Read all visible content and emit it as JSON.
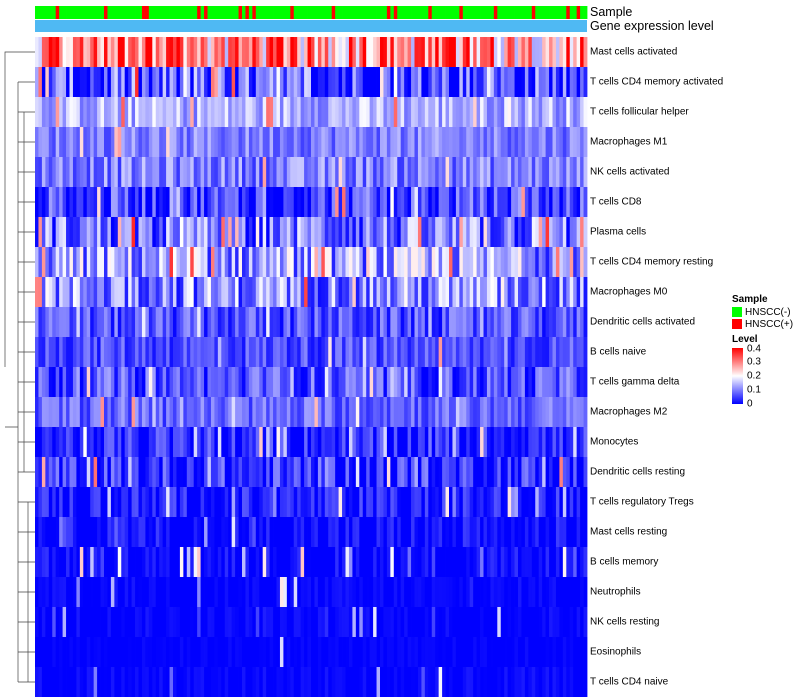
{
  "chart_data": {
    "type": "heatmap",
    "title": "",
    "annotation_tracks": [
      "Sample",
      "Gene expression level"
    ],
    "rows": [
      {
        "label": "Mast cells activated",
        "mean": 0.27,
        "spread": 0.14,
        "ptail": 0.35
      },
      {
        "label": "T cells CD4 memory activated",
        "mean": 0.05,
        "spread": 0.12,
        "ptail": 0.15
      },
      {
        "label": "T cells follicular helper",
        "mean": 0.14,
        "spread": 0.06,
        "ptail": 0.05
      },
      {
        "label": "Macrophages M1",
        "mean": 0.1,
        "spread": 0.05,
        "ptail": 0.04
      },
      {
        "label": "NK cells activated",
        "mean": 0.1,
        "spread": 0.06,
        "ptail": 0.04
      },
      {
        "label": "T cells CD8",
        "mean": 0.05,
        "spread": 0.08,
        "ptail": 0.1
      },
      {
        "label": "Plasma cells",
        "mean": 0.09,
        "spread": 0.1,
        "ptail": 0.12
      },
      {
        "label": "T cells CD4 memory resting",
        "mean": 0.12,
        "spread": 0.1,
        "ptail": 0.1
      },
      {
        "label": "Macrophages M0",
        "mean": 0.11,
        "spread": 0.1,
        "ptail": 0.12
      },
      {
        "label": "Dendritic cells activated",
        "mean": 0.06,
        "spread": 0.06,
        "ptail": 0.05
      },
      {
        "label": "B cells naive",
        "mean": 0.06,
        "spread": 0.05,
        "ptail": 0.04
      },
      {
        "label": "T cells gamma delta",
        "mean": 0.06,
        "spread": 0.07,
        "ptail": 0.06
      },
      {
        "label": "Macrophages M2",
        "mean": 0.08,
        "spread": 0.05,
        "ptail": 0.05
      },
      {
        "label": "Monocytes",
        "mean": 0.03,
        "spread": 0.06,
        "ptail": 0.08
      },
      {
        "label": "Dendritic cells resting",
        "mean": 0.03,
        "spread": 0.08,
        "ptail": 0.08
      },
      {
        "label": "T cells regulatory  Tregs",
        "mean": 0.02,
        "spread": 0.05,
        "ptail": 0.1
      },
      {
        "label": "Mast cells resting",
        "mean": 0.0,
        "spread": 0.05,
        "ptail": 0.05
      },
      {
        "label": "B cells memory",
        "mean": 0.0,
        "spread": 0.04,
        "ptail": 0.1
      },
      {
        "label": "Neutrophils",
        "mean": 0.0,
        "spread": 0.02,
        "ptail": 0.05
      },
      {
        "label": "NK cells resting",
        "mean": 0.0,
        "spread": 0.02,
        "ptail": 0.05
      },
      {
        "label": "Eosinophils",
        "mean": 0.0,
        "spread": 0.01,
        "ptail": 0.02
      },
      {
        "label": "T cells CD4 naive",
        "mean": 0.0,
        "spread": 0.02,
        "ptail": 0.05
      }
    ],
    "n_samples": 160,
    "sample_group_fraction_positive": 0.18,
    "color_scale": {
      "min": 0,
      "max": 0.4,
      "stops": [
        {
          "value": 0,
          "color": "#0000ff"
        },
        {
          "value": 0.2,
          "color": "#ffffff"
        },
        {
          "value": 0.4,
          "color": "#ff0000"
        }
      ]
    },
    "legends": {
      "sample": {
        "title": "Sample",
        "items": [
          {
            "label": "HNSCC(-)",
            "color": "#00ff00"
          },
          {
            "label": "HNSCC(+)",
            "color": "#ff0000"
          }
        ]
      },
      "level": {
        "title": "Level",
        "ticks": [
          "0.4",
          "0.3",
          "0.2",
          "0.1",
          "0"
        ]
      }
    },
    "gene_expression_color": "#4fb9f3"
  }
}
